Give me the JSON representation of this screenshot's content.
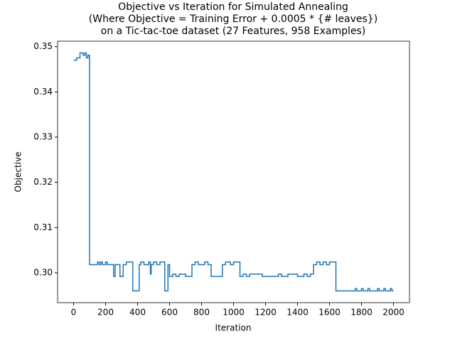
{
  "chart_data": {
    "type": "line",
    "title": [
      "Objective vs Iteration for Simulated Annealing",
      "(Where Objective = Training Error + 0.0005 * {# leaves})",
      "on a Tic-tac-toe dataset (27 Features, 958 Examples)"
    ],
    "x_label": "Iteration",
    "y_label": "Objective",
    "drawstyle": "steps-post",
    "series": [
      {
        "color": "#1f77b4",
        "x": [
          0,
          20,
          40,
          60,
          70,
          80,
          90,
          100,
          150,
          160,
          170,
          180,
          200,
          210,
          250,
          260,
          290,
          310,
          330,
          370,
          410,
          420,
          440,
          470,
          480,
          485,
          500,
          520,
          540,
          570,
          590,
          600,
          620,
          640,
          660,
          700,
          740,
          760,
          780,
          820,
          840,
          860,
          930,
          950,
          980,
          1000,
          1040,
          1060,
          1080,
          1100,
          1180,
          1280,
          1300,
          1340,
          1400,
          1440,
          1460,
          1480,
          1500,
          1520,
          1540,
          1560,
          1580,
          1600,
          1640,
          1760,
          1770,
          1800,
          1810,
          1840,
          1850,
          1900,
          1910,
          1940,
          1950,
          1980,
          1990,
          2000
        ],
        "values": [
          0.347,
          0.3475,
          0.3486,
          0.3481,
          0.3486,
          0.3475,
          0.3481,
          0.3018,
          0.3024,
          0.3018,
          0.3024,
          0.3018,
          0.3024,
          0.3018,
          0.2992,
          0.3018,
          0.2992,
          0.3018,
          0.3024,
          0.296,
          0.3018,
          0.3024,
          0.3018,
          0.3024,
          0.2997,
          0.3018,
          0.3024,
          0.3018,
          0.3024,
          0.296,
          0.3018,
          0.2992,
          0.2997,
          0.2992,
          0.2997,
          0.2992,
          0.3018,
          0.3024,
          0.3018,
          0.3024,
          0.3018,
          0.2992,
          0.3018,
          0.3024,
          0.3018,
          0.3024,
          0.2992,
          0.2997,
          0.2992,
          0.2997,
          0.2992,
          0.2997,
          0.2992,
          0.2997,
          0.2992,
          0.2997,
          0.2992,
          0.2997,
          0.3018,
          0.3024,
          0.3018,
          0.3024,
          0.3018,
          0.3024,
          0.296,
          0.2965,
          0.296,
          0.2965,
          0.296,
          0.2965,
          0.296,
          0.2965,
          0.296,
          0.2965,
          0.296,
          0.2965,
          0.296,
          0.296
        ]
      }
    ],
    "xlim": [
      -100,
      2100
    ],
    "xticks": [
      0,
      200,
      400,
      600,
      800,
      1000,
      1200,
      1400,
      1600,
      1800,
      2000
    ],
    "ylim": [
      0.2934,
      0.3512
    ],
    "yticks": [
      {
        "value": 0.3,
        "label": "0.30"
      },
      0.31,
      0.32,
      0.33,
      0.34,
      0.35
    ]
  }
}
